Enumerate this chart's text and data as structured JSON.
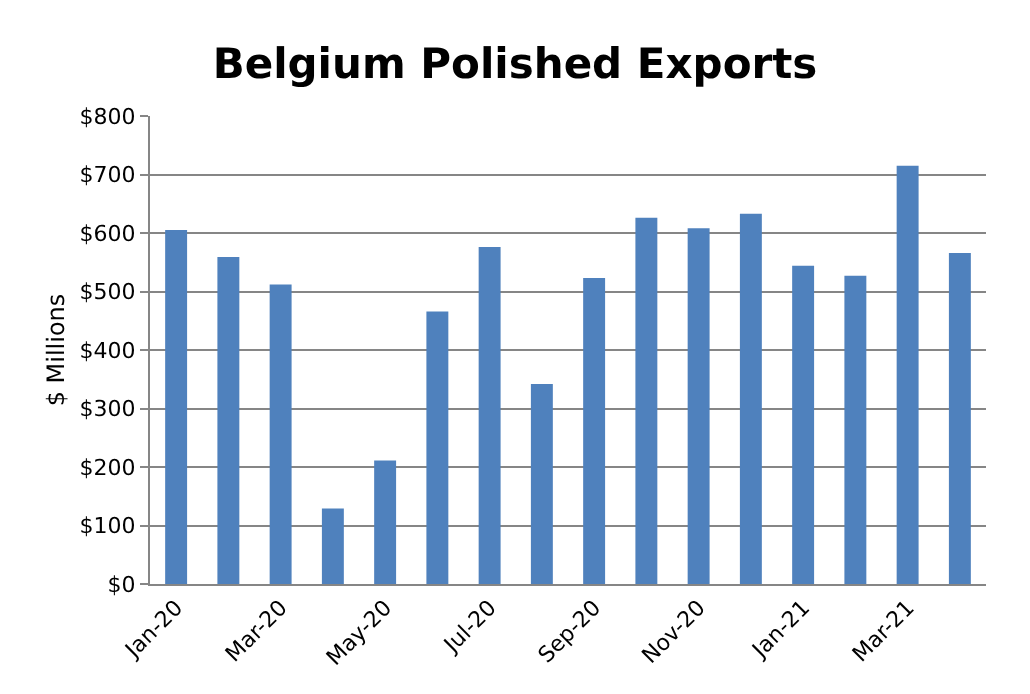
{
  "chart_data": {
    "type": "bar",
    "title": "Belgium Polished Exports",
    "ylabel": "$ Millions",
    "categories": [
      "Jan-20",
      null,
      "Mar-20",
      null,
      "May-20",
      null,
      "Jul-20",
      null,
      "Sep-20",
      null,
      "Nov-20",
      null,
      "Jan-21",
      null,
      "Mar-21",
      null
    ],
    "values": [
      605,
      559,
      512,
      129,
      211,
      466,
      576,
      342,
      523,
      626,
      608,
      633,
      544,
      527,
      715,
      566
    ],
    "color": "#4f81bd",
    "ylim": [
      0,
      800
    ],
    "yticks": [
      {
        "value": 0,
        "label": "$0"
      },
      {
        "value": 100,
        "label": "$100"
      },
      {
        "value": 200,
        "label": "$200"
      },
      {
        "value": 300,
        "label": "$300"
      },
      {
        "value": 400,
        "label": "$400"
      },
      {
        "value": 500,
        "label": "$500"
      },
      {
        "value": 600,
        "label": "$600"
      },
      {
        "value": 700,
        "label": "$700"
      },
      {
        "value": 800,
        "label": "$800"
      }
    ],
    "grid": "y",
    "legend": false
  }
}
